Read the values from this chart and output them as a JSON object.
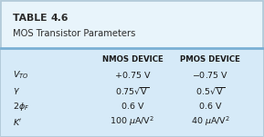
{
  "title_line1": "TABLE 4.6",
  "title_line1_plain": "TABLE ",
  "title_line1_bold": "4.6",
  "title_line2": "MOS Transistor Parameters",
  "col_headers": [
    "NMOS DEVICE",
    "PMOS DEVICE"
  ],
  "bg_color_title": "#e8f4fb",
  "bg_color_body": "#d6eaf8",
  "divider_color": "#7ab0d4",
  "border_color": "#b0c8d8",
  "text_dark": "#1a1a1a",
  "title_color": "#2c2c2c",
  "outer_bg": "#c8dce8"
}
